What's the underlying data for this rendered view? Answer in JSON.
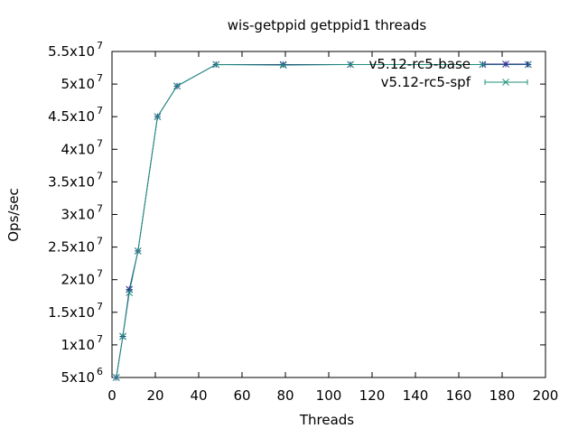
{
  "chart_data": {
    "type": "line",
    "title": "wis-getppid getppid1 threads",
    "xlabel": "Threads",
    "ylabel": "Ops/sec",
    "xlim": [
      0,
      200
    ],
    "ylim": [
      5000000,
      55000000
    ],
    "x_ticks": [
      {
        "value": 0,
        "label": "0"
      },
      {
        "value": 20,
        "label": "20"
      },
      {
        "value": 40,
        "label": "40"
      },
      {
        "value": 60,
        "label": "60"
      },
      {
        "value": 80,
        "label": "80"
      },
      {
        "value": 100,
        "label": "100"
      },
      {
        "value": 120,
        "label": "120"
      },
      {
        "value": 140,
        "label": "140"
      },
      {
        "value": 160,
        "label": "160"
      },
      {
        "value": 180,
        "label": "180"
      },
      {
        "value": 200,
        "label": "200"
      }
    ],
    "y_ticks": [
      {
        "value": 5000000,
        "mantissa": "5x10",
        "exp": "6"
      },
      {
        "value": 10000000,
        "mantissa": "1x10",
        "exp": "7"
      },
      {
        "value": 15000000,
        "mantissa": "1.5x10",
        "exp": "7"
      },
      {
        "value": 20000000,
        "mantissa": "2x10",
        "exp": "7"
      },
      {
        "value": 25000000,
        "mantissa": "2.5x10",
        "exp": "7"
      },
      {
        "value": 30000000,
        "mantissa": "3x10",
        "exp": "7"
      },
      {
        "value": 35000000,
        "mantissa": "3.5x10",
        "exp": "7"
      },
      {
        "value": 40000000,
        "mantissa": "4x10",
        "exp": "7"
      },
      {
        "value": 45000000,
        "mantissa": "4.5x10",
        "exp": "7"
      },
      {
        "value": 50000000,
        "mantissa": "5x10",
        "exp": "7"
      },
      {
        "value": 55000000,
        "mantissa": "5.5x10",
        "exp": "7"
      }
    ],
    "grid": false,
    "legend_position": "top-right",
    "series": [
      {
        "name": "v5.12-rc5-base",
        "color": "#2b2b8f",
        "marker": "star",
        "points": [
          [
            2,
            5000000
          ],
          [
            5,
            11300000
          ],
          [
            8,
            18500000
          ],
          [
            12,
            24400000
          ],
          [
            21,
            45000000
          ],
          [
            30,
            49700000
          ],
          [
            48,
            53000000
          ],
          [
            79,
            53000000
          ],
          [
            110,
            53000000
          ],
          [
            171,
            53000000
          ],
          [
            192,
            53000000
          ]
        ]
      },
      {
        "name": "v5.12-rc5-spf",
        "color": "#1f8f7a",
        "marker": "x",
        "points": [
          [
            2,
            5000000
          ],
          [
            5,
            11300000
          ],
          [
            8,
            18000000
          ],
          [
            12,
            24400000
          ],
          [
            21,
            45000000
          ],
          [
            30,
            49700000
          ],
          [
            48,
            53000000
          ],
          [
            79,
            52900000
          ],
          [
            110,
            53000000
          ],
          [
            171,
            53000000
          ],
          [
            192,
            53000000
          ]
        ]
      }
    ]
  }
}
